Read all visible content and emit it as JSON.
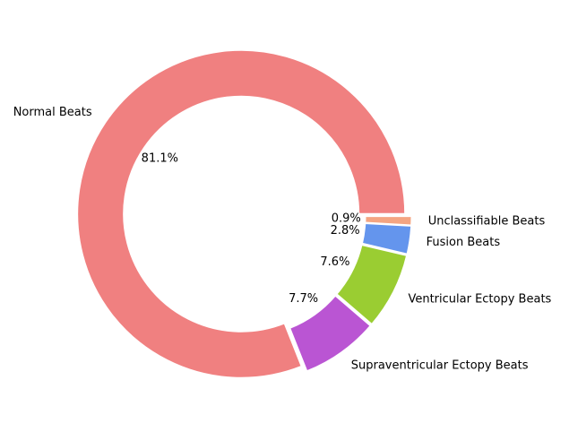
{
  "chart_data": {
    "type": "pie",
    "style": "donut",
    "categories": [
      "Normal Beats",
      "Supraventricular Ectopy Beats",
      "Ventricular Ectopy Beats",
      "Fusion Beats",
      "Unclassifiable Beats"
    ],
    "values": [
      81.1,
      7.7,
      7.6,
      2.8,
      0.9
    ],
    "value_labels": [
      "81.1%",
      "7.7%",
      "7.6%",
      "2.8%",
      "0.9%"
    ],
    "colors": [
      "#f08080",
      "#ba55d3",
      "#9acd32",
      "#6495ed",
      "#f4a582"
    ],
    "slices_exploded": true,
    "legend": "none",
    "title": ""
  }
}
